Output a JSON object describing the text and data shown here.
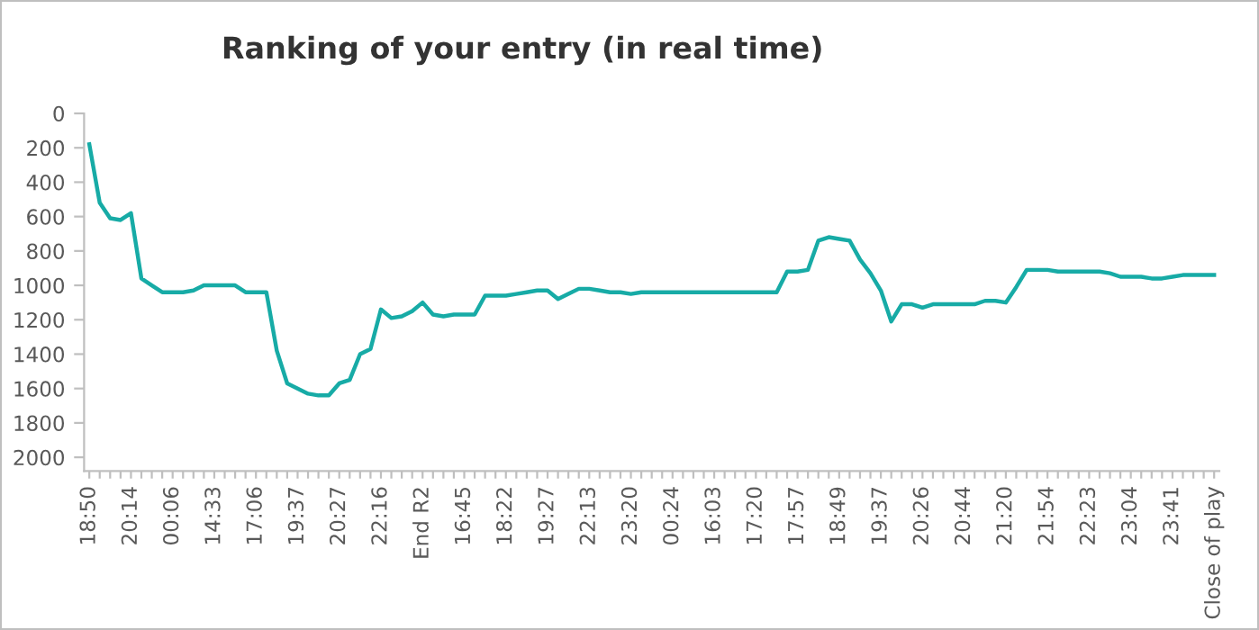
{
  "chart_data": {
    "type": "line",
    "title": "Ranking of your entry (in real time)",
    "categories": [
      "18:50",
      null,
      null,
      null,
      "20:14",
      null,
      null,
      null,
      "00:06",
      null,
      null,
      null,
      "14:33",
      null,
      null,
      null,
      "17:06",
      null,
      null,
      null,
      "19:37",
      null,
      null,
      null,
      "20:27",
      null,
      null,
      null,
      "22:16",
      null,
      null,
      null,
      "End R2",
      null,
      null,
      null,
      "16:45",
      null,
      null,
      null,
      "18:22",
      null,
      null,
      null,
      "19:27",
      null,
      null,
      null,
      "22:13",
      null,
      null,
      null,
      "23:20",
      null,
      null,
      null,
      "00:24",
      null,
      null,
      null,
      "16:03",
      null,
      null,
      null,
      "17:20",
      null,
      null,
      null,
      "17:57",
      null,
      null,
      null,
      "18:49",
      null,
      null,
      null,
      "19:37",
      null,
      null,
      null,
      "20:26",
      null,
      null,
      null,
      "20:44",
      null,
      null,
      null,
      "21:20",
      null,
      null,
      null,
      "21:54",
      null,
      null,
      null,
      "22:23",
      null,
      null,
      null,
      "23:04",
      null,
      null,
      null,
      "23:41",
      null,
      null,
      null,
      "Close of play"
    ],
    "series": [
      {
        "color": "#17aba6",
        "values": [
          180,
          520,
          610,
          620,
          580,
          960,
          1000,
          1040,
          1040,
          1040,
          1030,
          1000,
          1000,
          1000,
          1000,
          1040,
          1040,
          1040,
          1380,
          1570,
          1600,
          1630,
          1640,
          1640,
          1570,
          1550,
          1400,
          1370,
          1140,
          1190,
          1180,
          1150,
          1100,
          1170,
          1180,
          1170,
          1170,
          1170,
          1060,
          1060,
          1060,
          1050,
          1040,
          1030,
          1030,
          1080,
          1050,
          1020,
          1020,
          1030,
          1040,
          1040,
          1050,
          1040,
          1040,
          1040,
          1040,
          1040,
          1040,
          1040,
          1040,
          1040,
          1040,
          1040,
          1040,
          1040,
          1040,
          920,
          920,
          910,
          740,
          720,
          730,
          740,
          850,
          930,
          1030,
          1210,
          1110,
          1110,
          1130,
          1110,
          1110,
          1110,
          1110,
          1110,
          1090,
          1090,
          1100,
          1010,
          910,
          910,
          910,
          920,
          920,
          920,
          920,
          920,
          930,
          950,
          950,
          950,
          960,
          960,
          950,
          940,
          940,
          940,
          940
        ]
      }
    ],
    "ylim": [
      2080,
      0
    ],
    "yticks": [
      0,
      200,
      400,
      600,
      800,
      1000,
      1200,
      1400,
      1600,
      1800,
      2000
    ],
    "grid": false,
    "marker": "none",
    "line_style": "solid"
  }
}
